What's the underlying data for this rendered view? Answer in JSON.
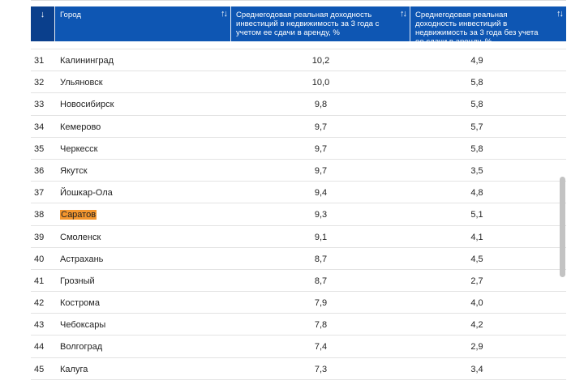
{
  "header": {
    "num_icon": "↓",
    "city_label": "Город",
    "col1_label": "Среднегодовая реальная доходность инвестиций в недвижимость за 3 года с учетом ее сдачи в аренду, %",
    "col2_label": "Среднегодовая реальная доходность инвестиций в недвижимость за 3 года без учета ее сдачи в аренду, %",
    "sort_icon": "↑↓"
  },
  "rows": [
    {
      "num": "31",
      "city": "Калининград",
      "v1": "10,2",
      "v2": "4,9"
    },
    {
      "num": "32",
      "city": "Ульяновск",
      "v1": "10,0",
      "v2": "5,8"
    },
    {
      "num": "33",
      "city": "Новосибирск",
      "v1": "9,8",
      "v2": "5,8"
    },
    {
      "num": "34",
      "city": "Кемерово",
      "v1": "9,7",
      "v2": "5,7"
    },
    {
      "num": "35",
      "city": "Черкесск",
      "v1": "9,7",
      "v2": "5,8"
    },
    {
      "num": "36",
      "city": "Якутск",
      "v1": "9,7",
      "v2": "3,5"
    },
    {
      "num": "37",
      "city": "Йошкар-Ола",
      "v1": "9,4",
      "v2": "4,8"
    },
    {
      "num": "38",
      "city": "Саратов",
      "v1": "9,3",
      "v2": "5,1"
    },
    {
      "num": "39",
      "city": "Смоленск",
      "v1": "9,1",
      "v2": "4,1"
    },
    {
      "num": "40",
      "city": "Астрахань",
      "v1": "8,7",
      "v2": "4,5"
    },
    {
      "num": "41",
      "city": "Грозный",
      "v1": "8,7",
      "v2": "2,7"
    },
    {
      "num": "42",
      "city": "Кострома",
      "v1": "7,9",
      "v2": "4,0"
    },
    {
      "num": "43",
      "city": "Чебоксары",
      "v1": "7,8",
      "v2": "4,2"
    },
    {
      "num": "44",
      "city": "Волгоград",
      "v1": "7,4",
      "v2": "2,9"
    },
    {
      "num": "45",
      "city": "Калуга",
      "v1": "7,3",
      "v2": "3,4"
    }
  ],
  "highlight": {
    "city": "Саратов",
    "color": "#f3962e"
  },
  "colors": {
    "header_bg": "#0e56b3",
    "header_num_bg": "#0a3f8c",
    "scrollbar": "#c3c3c3"
  }
}
